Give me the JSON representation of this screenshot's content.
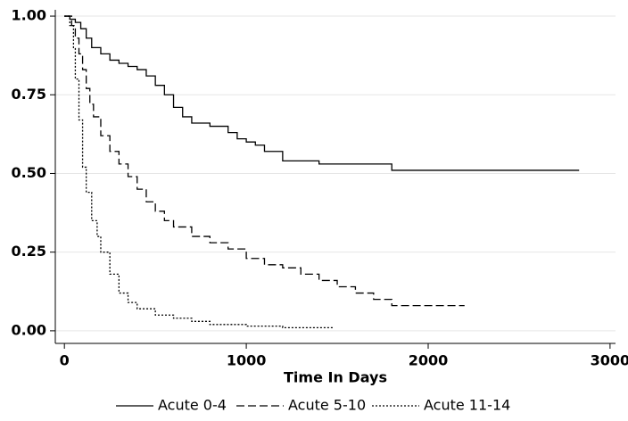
{
  "chart_data": {
    "type": "line",
    "step": true,
    "x_label": "Time In Days",
    "xlim": [
      -50,
      3030
    ],
    "xticks": [
      0,
      1000,
      2000,
      3000
    ],
    "ylim": [
      -0.04,
      1.02
    ],
    "yticks": [
      {
        "value": 0,
        "label": "0.00"
      },
      {
        "value": 0.25,
        "label": "0.25"
      },
      {
        "value": 0.5,
        "label": "0.50"
      },
      {
        "value": 0.75,
        "label": "0.75"
      },
      {
        "value": 1,
        "label": "1.00"
      }
    ],
    "grid": true,
    "legend": "bottom",
    "series": [
      {
        "name": "Acute 0-4",
        "color": "#000000",
        "dash": "solid",
        "x": [
          0,
          30,
          60,
          90,
          120,
          150,
          200,
          250,
          300,
          350,
          400,
          450,
          500,
          550,
          600,
          650,
          700,
          800,
          900,
          950,
          1000,
          1050,
          1100,
          1200,
          1400,
          1800,
          2830
        ],
        "values": [
          1.0,
          0.99,
          0.98,
          0.96,
          0.93,
          0.9,
          0.88,
          0.86,
          0.85,
          0.84,
          0.83,
          0.81,
          0.78,
          0.75,
          0.71,
          0.68,
          0.66,
          0.65,
          0.63,
          0.61,
          0.6,
          0.59,
          0.57,
          0.54,
          0.53,
          0.51,
          0.51
        ]
      },
      {
        "name": "Acute 5-10",
        "color": "#000000",
        "dash": "dashed",
        "x": [
          0,
          40,
          60,
          80,
          100,
          120,
          140,
          160,
          200,
          250,
          300,
          350,
          400,
          450,
          500,
          550,
          600,
          700,
          800,
          900,
          1000,
          1100,
          1200,
          1300,
          1400,
          1500,
          1600,
          1700,
          1800,
          2200
        ],
        "values": [
          1.0,
          0.97,
          0.93,
          0.88,
          0.83,
          0.77,
          0.72,
          0.68,
          0.62,
          0.57,
          0.53,
          0.49,
          0.45,
          0.41,
          0.38,
          0.35,
          0.33,
          0.3,
          0.28,
          0.26,
          0.23,
          0.21,
          0.2,
          0.18,
          0.16,
          0.14,
          0.12,
          0.1,
          0.08,
          0.08
        ]
      },
      {
        "name": "Acute 11-14",
        "color": "#000000",
        "dash": "dotted",
        "x": [
          0,
          30,
          50,
          60,
          80,
          100,
          120,
          150,
          180,
          200,
          250,
          300,
          350,
          400,
          500,
          600,
          700,
          800,
          1000,
          1200,
          1480
        ],
        "values": [
          1.0,
          0.97,
          0.9,
          0.8,
          0.67,
          0.52,
          0.44,
          0.35,
          0.3,
          0.25,
          0.18,
          0.12,
          0.09,
          0.07,
          0.05,
          0.04,
          0.03,
          0.02,
          0.015,
          0.01,
          0.01
        ]
      }
    ]
  }
}
